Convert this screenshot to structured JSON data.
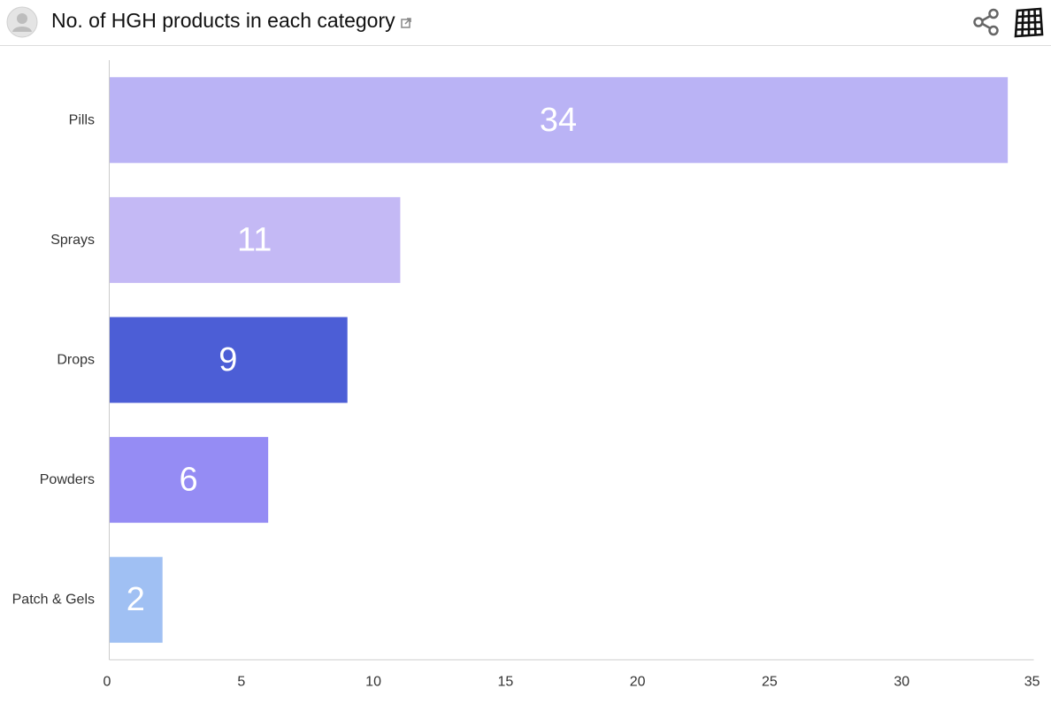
{
  "header": {
    "title": "No. of HGH products in each category"
  },
  "icons": {
    "avatar": "user-avatar-icon",
    "external_link": "external-link-icon",
    "share": "share-icon",
    "grid": "data-grid-icon"
  },
  "chart_data": {
    "type": "bar",
    "orientation": "horizontal",
    "title": "No. of HGH products in each category",
    "categories": [
      "Pills",
      "Sprays",
      "Drops",
      "Powders",
      "Patch & Gels"
    ],
    "values": [
      34,
      11,
      9,
      6,
      2
    ],
    "colors": [
      "#bab3f5",
      "#c4b9f5",
      "#4c5ed6",
      "#958cf4",
      "#a0c0f3"
    ],
    "xlim": [
      0,
      35
    ],
    "xticks": [
      0,
      5,
      10,
      15,
      20,
      25,
      30,
      35
    ],
    "xlabel": "",
    "ylabel": "",
    "data_labels": true,
    "grid": false,
    "legend": "none"
  }
}
